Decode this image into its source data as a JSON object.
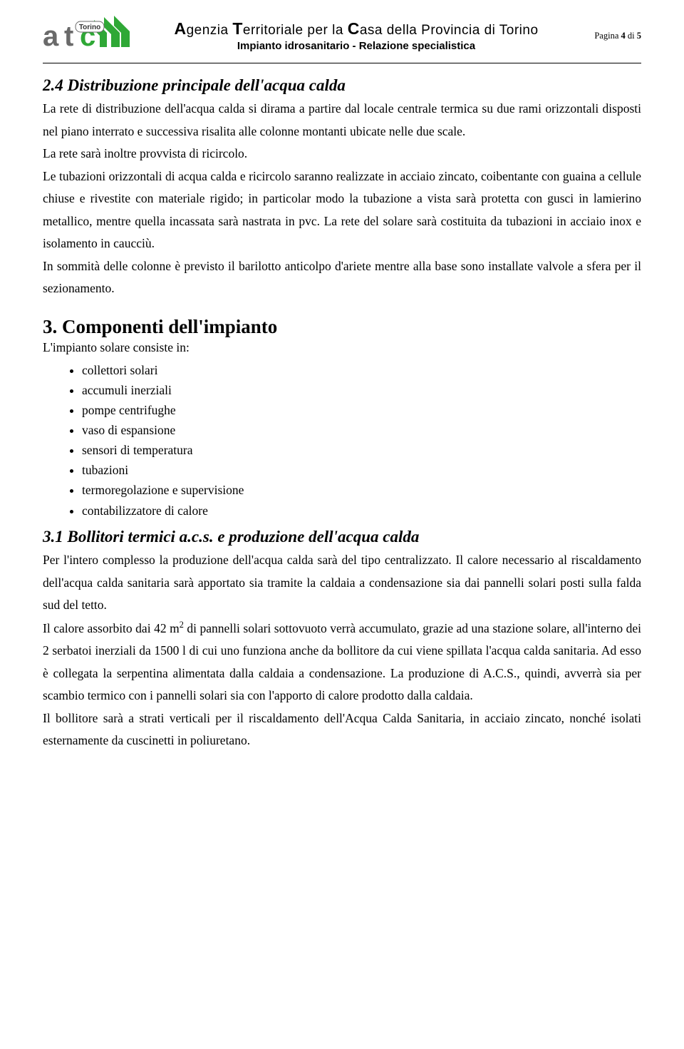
{
  "header": {
    "agency_html": "<span class='big'>A</span>genzia <span class='big'>T</span>erritoriale per la <span class='big'>C</span>asa della Provincia di Torino",
    "subtitle": "Impianto idrosanitario - Relazione specialistica",
    "page_label_prefix": "Pagina ",
    "page_current": "4",
    "page_sep": " di ",
    "page_total": "5",
    "logo": {
      "text_a": "a",
      "text_t": "t",
      "text_c": "c",
      "text_sub": "Torino",
      "green": "#2fa836",
      "gray": "#6a6a6a"
    }
  },
  "sec24": {
    "title": "2.4 Distribuzione principale dell'acqua calda",
    "p1": "La rete di distribuzione dell'acqua calda si dirama a partire dal locale centrale termica su due rami orizzontali disposti nel piano interrato e successiva risalita alle colonne montanti ubicate nelle due scale.",
    "p2": "La rete sarà inoltre provvista di ricircolo.",
    "p3": "Le tubazioni orizzontali di acqua calda e ricircolo saranno realizzate in acciaio zincato, coibentante con guaina a cellule chiuse e rivestite con materiale rigido; in particolar modo la tubazione a vista sarà protetta con gusci in lamierino metallico, mentre quella incassata sarà nastrata in pvc. La rete del solare sarà costituita da tubazioni in acciaio inox e isolamento in caucciù.",
    "p4": "In sommità delle colonne è previsto il barilotto anticolpo d'ariete mentre alla base sono installate valvole a sfera per il sezionamento."
  },
  "sec3": {
    "title": "3.  Componenti dell'impianto",
    "intro": "L'impianto solare consiste in:",
    "items": [
      "collettori solari",
      "accumuli inerziali",
      "pompe centrifughe",
      "vaso di espansione",
      "sensori di temperatura",
      "tubazioni",
      "termoregolazione e supervisione",
      "contabilizzatore di calore"
    ]
  },
  "sec31": {
    "title": "3.1 Bollitori termici  a.c.s.  e  produzione dell'acqua calda",
    "p1": "Per l'intero complesso la produzione dell'acqua calda sarà del tipo centralizzato. Il calore necessario al riscaldamento dell'acqua calda sanitaria sarà apportato sia tramite la caldaia a condensazione sia dai pannelli solari posti sulla falda sud del tetto.",
    "p2_html": "Il calore assorbito dai 42 m<sup>2</sup> di pannelli solari sottovuoto verrà accumulato, grazie ad una stazione solare, all'interno dei 2 serbatoi inerziali da 1500 l  di cui uno funziona anche da bollitore da cui viene spillata l'acqua calda sanitaria. Ad esso è collegata la serpentina alimentata dalla caldaia a condensazione. La produzione di A.C.S., quindi, avverrà sia per scambio termico con i pannelli solari sia con l'apporto di calore prodotto dalla caldaia.",
    "p3": "Il bollitore sarà a strati verticali per il riscaldamento dell'Acqua Calda Sanitaria, in acciaio zincato, nonché isolati esternamente da cuscinetti in poliuretano."
  }
}
